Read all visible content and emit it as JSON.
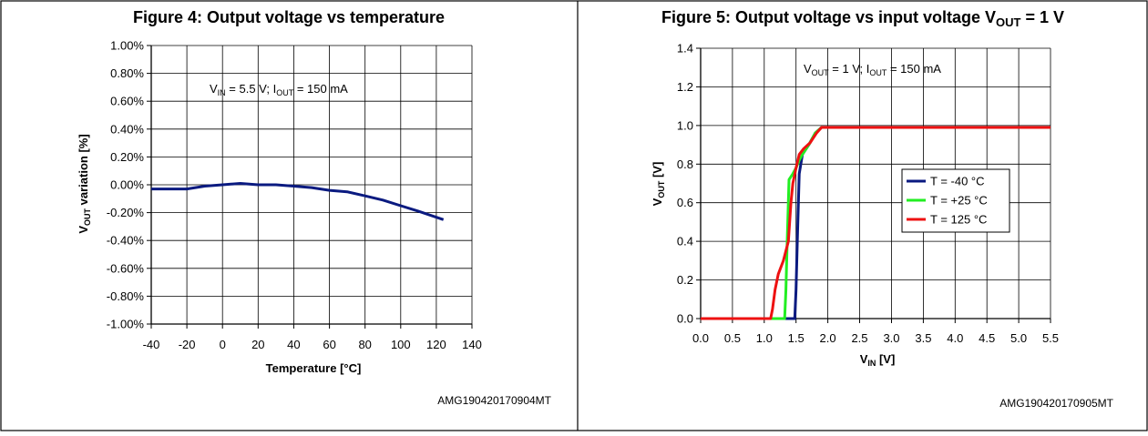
{
  "chart_data": [
    {
      "type": "line",
      "title": "Figure 4: Output voltage vs temperature",
      "annotation": {
        "parts": [
          "V",
          "IN",
          " = 5.5 V; I",
          "OUT",
          " = 150 mA"
        ]
      },
      "xlabel": "Temperature [°C]",
      "ylabel": {
        "main": "V",
        "sub": "OUT",
        "rest": " variation [%]"
      },
      "xlim": [
        -40,
        140
      ],
      "ylim": [
        -1.0,
        1.0
      ],
      "xticks": [
        -40,
        -20,
        0,
        20,
        40,
        60,
        80,
        100,
        120,
        140
      ],
      "yticks": [
        -1.0,
        -0.8,
        -0.6,
        -0.4,
        -0.2,
        0.0,
        0.2,
        0.4,
        0.6,
        0.8,
        1.0
      ],
      "xtick_labels": [
        "-40",
        "-20",
        "0",
        "20",
        "40",
        "60",
        "80",
        "100",
        "120",
        "140"
      ],
      "ytick_labels": [
        "-1.00%",
        "-0.80%",
        "-0.60%",
        "-0.40%",
        "-0.20%",
        "0.00%",
        "0.20%",
        "0.40%",
        "0.60%",
        "0.80%",
        "1.00%"
      ],
      "grid": true,
      "series": [
        {
          "color": "#0a1a80",
          "points": [
            [
              -40,
              -0.03
            ],
            [
              -20,
              -0.03
            ],
            [
              -10,
              -0.01
            ],
            [
              0,
              0.0
            ],
            [
              10,
              0.01
            ],
            [
              20,
              0.0
            ],
            [
              30,
              0.0
            ],
            [
              40,
              -0.01
            ],
            [
              50,
              -0.02
            ],
            [
              60,
              -0.04
            ],
            [
              70,
              -0.05
            ],
            [
              80,
              -0.08
            ],
            [
              90,
              -0.11
            ],
            [
              100,
              -0.15
            ],
            [
              110,
              -0.19
            ],
            [
              124,
              -0.25
            ]
          ]
        }
      ],
      "code": "AMG190420170904MT"
    },
    {
      "type": "line",
      "title": {
        "pre": "Figure 5: Output voltage vs input voltage V",
        "sub": "OUT",
        "post": " = 1 V"
      },
      "annotation": {
        "parts": [
          "V",
          "OUT",
          " = 1 V; I",
          "OUT",
          " = 150 mA"
        ]
      },
      "xlabel": {
        "main": "V",
        "sub": "IN",
        "rest": " [V]"
      },
      "ylabel": {
        "main": "V",
        "sub": "OUT",
        "rest": " [V]"
      },
      "xlim": [
        0.0,
        5.5
      ],
      "ylim": [
        0.0,
        1.4
      ],
      "xticks": [
        0.0,
        0.5,
        1.0,
        1.5,
        2.0,
        2.5,
        3.0,
        3.5,
        4.0,
        4.5,
        5.0,
        5.5
      ],
      "yticks": [
        0.0,
        0.2,
        0.4,
        0.6,
        0.8,
        1.0,
        1.2,
        1.4
      ],
      "xtick_labels": [
        "0.0",
        "0.5",
        "1.0",
        "1.5",
        "2.0",
        "2.5",
        "3.0",
        "3.5",
        "4.0",
        "4.5",
        "5.0",
        "5.5"
      ],
      "ytick_labels": [
        "0.0",
        "0.2",
        "0.4",
        "0.6",
        "0.8",
        "1.0",
        "1.2",
        "1.4"
      ],
      "grid": true,
      "legend_position": "right",
      "series": [
        {
          "name": "T = -40 °C",
          "color": "#0a1a80",
          "points": [
            [
              0.0,
              0.0
            ],
            [
              1.48,
              0.0
            ],
            [
              1.5,
              0.15
            ],
            [
              1.52,
              0.4
            ],
            [
              1.55,
              0.75
            ],
            [
              1.6,
              0.85
            ],
            [
              1.7,
              0.9
            ],
            [
              1.8,
              0.96
            ],
            [
              1.9,
              0.99
            ],
            [
              5.5,
              0.99
            ]
          ]
        },
        {
          "name": "T = +25 °C",
          "color": "#22ee22",
          "points": [
            [
              0.0,
              0.0
            ],
            [
              1.32,
              0.0
            ],
            [
              1.34,
              0.15
            ],
            [
              1.36,
              0.4
            ],
            [
              1.39,
              0.72
            ],
            [
              1.45,
              0.75
            ],
            [
              1.5,
              0.78
            ],
            [
              1.55,
              0.82
            ],
            [
              1.6,
              0.85
            ],
            [
              1.7,
              0.9
            ],
            [
              1.8,
              0.96
            ],
            [
              1.9,
              0.99
            ],
            [
              5.5,
              0.99
            ]
          ]
        },
        {
          "name": "T = 125 °C",
          "color": "#ee1111",
          "points": [
            [
              0.0,
              0.0
            ],
            [
              1.1,
              0.0
            ],
            [
              1.13,
              0.05
            ],
            [
              1.17,
              0.15
            ],
            [
              1.22,
              0.23
            ],
            [
              1.3,
              0.3
            ],
            [
              1.38,
              0.4
            ],
            [
              1.42,
              0.6
            ],
            [
              1.45,
              0.7
            ],
            [
              1.5,
              0.78
            ],
            [
              1.55,
              0.85
            ],
            [
              1.62,
              0.88
            ],
            [
              1.72,
              0.91
            ],
            [
              1.82,
              0.96
            ],
            [
              1.9,
              0.99
            ],
            [
              5.5,
              0.99
            ]
          ]
        }
      ],
      "code": "AMG190420170905MT"
    }
  ]
}
